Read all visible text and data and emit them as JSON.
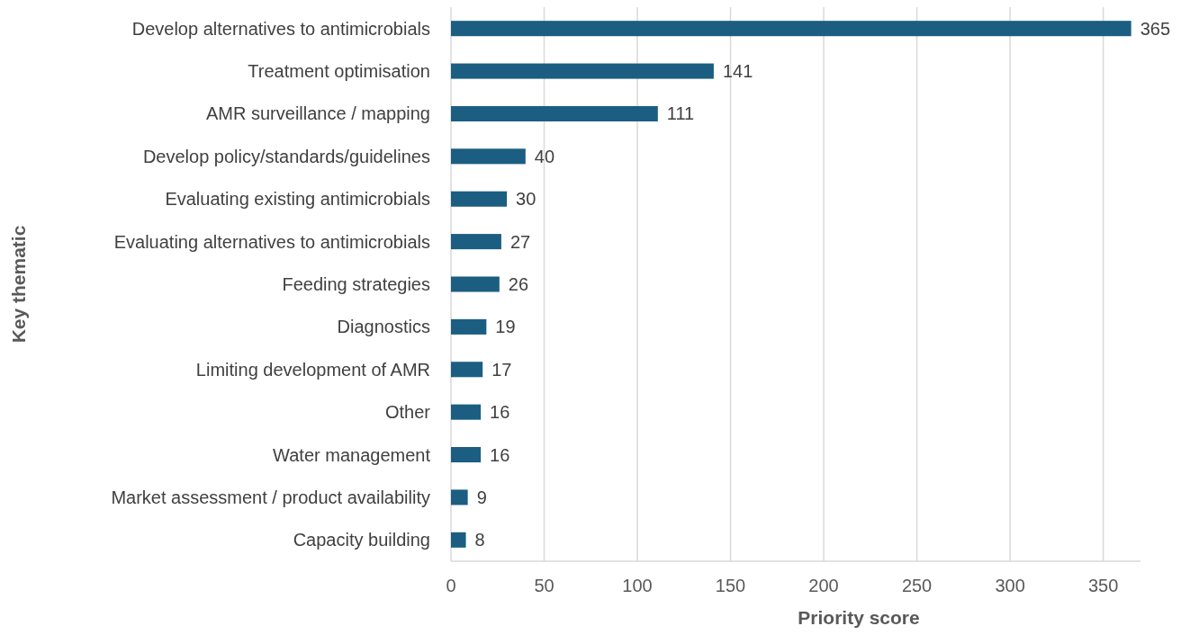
{
  "chart_data": {
    "type": "bar",
    "orientation": "horizontal",
    "xlabel": "Priority score",
    "ylabel": "Key thematic",
    "categories": [
      "Develop alternatives to antimicrobials",
      "Treatment optimisation",
      "AMR surveillance / mapping",
      "Develop policy/standards/guidelines",
      "Evaluating existing antimicrobials",
      "Evaluating alternatives to antimicrobials",
      "Feeding strategies",
      "Diagnostics",
      "Limiting development of AMR",
      "Other",
      "Water management",
      "Market assessment / product availability",
      "Capacity building"
    ],
    "values": [
      365,
      141,
      111,
      40,
      30,
      27,
      26,
      19,
      17,
      16,
      16,
      9,
      8
    ],
    "color": "#1b5e82",
    "data_labels": true,
    "grid": "x",
    "xlim": [
      0,
      370
    ],
    "xticks": [
      0,
      50,
      100,
      150,
      200,
      250,
      300,
      350
    ]
  }
}
